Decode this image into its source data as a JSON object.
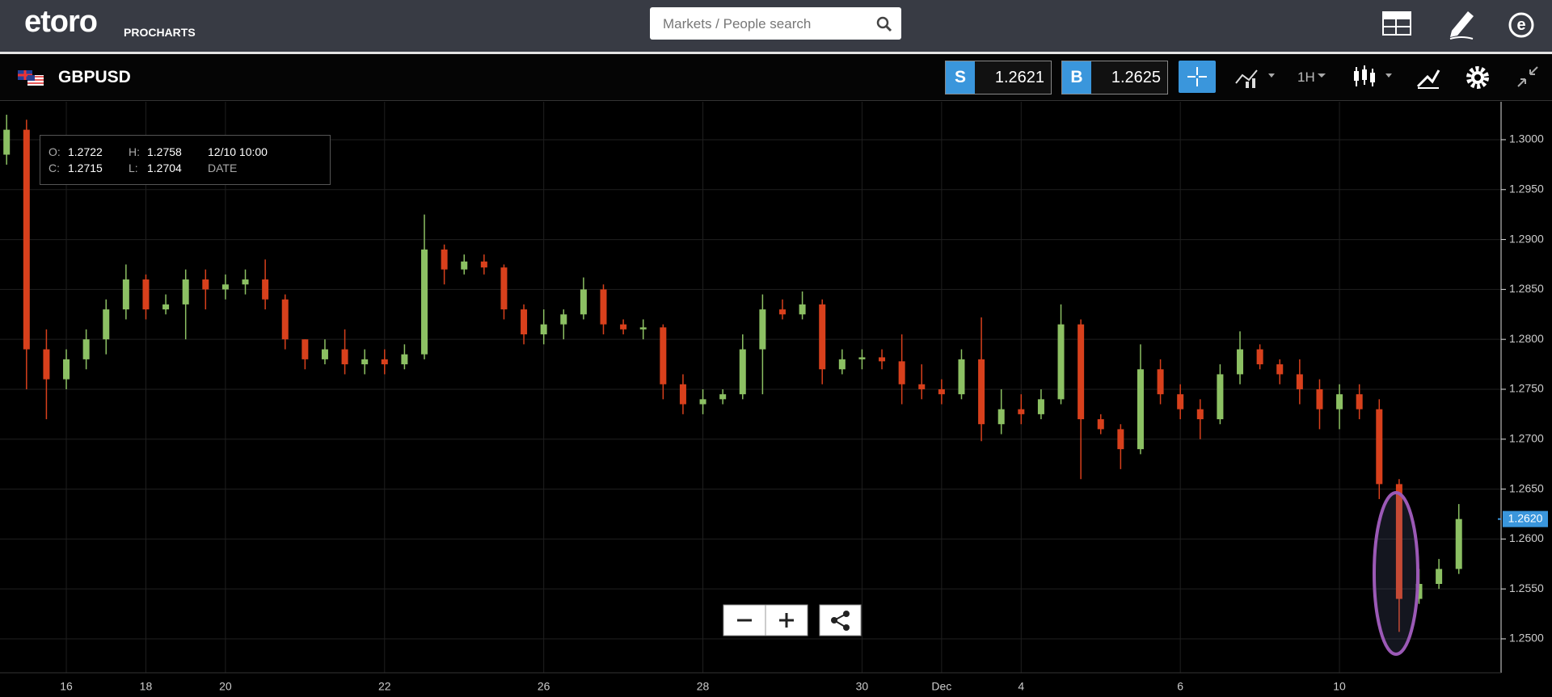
{
  "ui": {
    "logo": "etoro",
    "product": "PROCHARTS",
    "search_placeholder": "Markets / People search",
    "symbol": "GBPUSD",
    "sell_label": "S",
    "sell_price": "1.2621",
    "buy_label": "B",
    "buy_price": "1.2625",
    "timeframe": "1H",
    "ohlc": {
      "o_label": "O:",
      "o": "1.2722",
      "h_label": "H:",
      "h": "1.2758",
      "date": "12/10 10:00",
      "c_label": "C:",
      "c": "1.2715",
      "l_label": "L:",
      "l": "1.2704",
      "date_label": "DATE"
    }
  },
  "chart_data": {
    "type": "candlestick",
    "categories": [
      null,
      null,
      null,
      "16",
      null,
      null,
      null,
      "18",
      null,
      null,
      null,
      "20",
      null,
      null,
      null,
      null,
      null,
      null,
      null,
      "22",
      null,
      null,
      null,
      null,
      null,
      null,
      null,
      "26",
      null,
      null,
      null,
      null,
      null,
      null,
      null,
      "28",
      null,
      null,
      null,
      null,
      null,
      null,
      null,
      "30",
      null,
      null,
      null,
      "Dec",
      null,
      null,
      null,
      "4",
      null,
      null,
      null,
      null,
      null,
      null,
      null,
      "6",
      null,
      null,
      null,
      null,
      null,
      null,
      null,
      "10",
      null,
      null,
      null,
      null,
      null,
      null
    ],
    "open": [
      1.2985,
      1.301,
      1.279,
      1.276,
      1.278,
      1.28,
      1.283,
      1.286,
      1.283,
      1.2835,
      1.286,
      1.285,
      1.2855,
      1.286,
      1.284,
      1.28,
      1.278,
      1.279,
      1.2775,
      1.278,
      1.2775,
      1.2785,
      1.289,
      1.287,
      1.2878,
      1.2872,
      1.283,
      1.2805,
      1.2815,
      1.2825,
      1.285,
      1.2815,
      1.281,
      1.2812,
      1.2755,
      1.2735,
      1.274,
      1.2745,
      1.279,
      1.283,
      1.2825,
      1.2835,
      1.277,
      1.278,
      1.2782,
      1.2778,
      1.2755,
      1.275,
      1.2745,
      1.278,
      1.2715,
      1.273,
      1.2725,
      1.274,
      1.2815,
      1.272,
      1.271,
      1.269,
      1.277,
      1.2745,
      1.273,
      1.272,
      1.2765,
      1.279,
      1.2775,
      1.2765,
      1.275,
      1.273,
      1.2745,
      1.273,
      1.2655,
      1.254,
      1.2555,
      1.257
    ],
    "high": [
      1.3025,
      1.302,
      1.281,
      1.279,
      1.281,
      1.284,
      1.2875,
      1.2865,
      1.2845,
      1.287,
      1.287,
      1.2865,
      1.287,
      1.288,
      1.2845,
      1.28,
      1.28,
      1.281,
      1.279,
      1.279,
      1.2795,
      1.2925,
      1.2895,
      1.2885,
      1.2885,
      1.2875,
      1.2835,
      1.283,
      1.283,
      1.2862,
      1.2855,
      1.282,
      1.282,
      1.2815,
      1.2765,
      1.275,
      1.275,
      1.2805,
      1.2845,
      1.284,
      1.2848,
      1.284,
      1.279,
      1.279,
      1.279,
      1.2805,
      1.2775,
      1.276,
      1.279,
      1.2822,
      1.275,
      1.2745,
      1.275,
      1.2835,
      1.282,
      1.2725,
      1.2715,
      1.2795,
      1.278,
      1.2755,
      1.274,
      1.2775,
      1.2808,
      1.2795,
      1.278,
      1.278,
      1.276,
      1.2755,
      1.2755,
      1.274,
      1.266,
      1.257,
      1.258,
      1.2635
    ],
    "low": [
      1.2975,
      1.275,
      1.272,
      1.275,
      1.277,
      1.2785,
      1.282,
      1.282,
      1.2825,
      1.28,
      1.283,
      1.284,
      1.2845,
      1.283,
      1.279,
      1.277,
      1.2775,
      1.2765,
      1.2765,
      1.2765,
      1.277,
      1.278,
      1.2855,
      1.2865,
      1.2865,
      1.282,
      1.2795,
      1.2795,
      1.28,
      1.282,
      1.2805,
      1.2805,
      1.28,
      1.274,
      1.2725,
      1.2725,
      1.2735,
      1.274,
      1.2745,
      1.282,
      1.282,
      1.2755,
      1.2765,
      1.277,
      1.277,
      1.2735,
      1.274,
      1.2735,
      1.274,
      1.2698,
      1.2705,
      1.2715,
      1.272,
      1.2735,
      1.266,
      1.2705,
      1.267,
      1.2685,
      1.2735,
      1.272,
      1.27,
      1.2715,
      1.2755,
      1.277,
      1.2755,
      1.2735,
      1.271,
      1.271,
      1.272,
      1.264,
      1.2507,
      1.2535,
      1.255,
      1.2565
    ],
    "close": [
      1.301,
      1.279,
      1.276,
      1.278,
      1.28,
      1.283,
      1.286,
      1.283,
      1.2835,
      1.286,
      1.285,
      1.2855,
      1.286,
      1.284,
      1.28,
      1.278,
      1.279,
      1.2775,
      1.278,
      1.2775,
      1.2785,
      1.289,
      1.287,
      1.2878,
      1.2872,
      1.283,
      1.2805,
      1.2815,
      1.2825,
      1.285,
      1.2815,
      1.281,
      1.2812,
      1.2755,
      1.2735,
      1.274,
      1.2745,
      1.279,
      1.283,
      1.2825,
      1.2835,
      1.277,
      1.278,
      1.2782,
      1.2778,
      1.2755,
      1.275,
      1.2745,
      1.278,
      1.2715,
      1.273,
      1.2725,
      1.274,
      1.2815,
      1.272,
      1.271,
      1.269,
      1.277,
      1.2745,
      1.273,
      1.272,
      1.2765,
      1.279,
      1.2775,
      1.2765,
      1.275,
      1.273,
      1.2745,
      1.273,
      1.2655,
      1.254,
      1.2555,
      1.257,
      1.262
    ],
    "up_color": "#8cc063",
    "down_color": "#d8401c",
    "ylim": [
      1.2466,
      1.3038
    ],
    "yticks": [
      {
        "value": 1.25,
        "label": "1.2500"
      },
      {
        "value": 1.255,
        "label": "1.2550"
      },
      {
        "value": 1.26,
        "label": "1.2600"
      },
      {
        "value": 1.265,
        "label": "1.2650"
      },
      {
        "value": 1.27,
        "label": "1.2700"
      },
      {
        "value": 1.275,
        "label": "1.2750"
      },
      {
        "value": 1.28,
        "label": "1.2800"
      },
      {
        "value": 1.285,
        "label": "1.2850"
      },
      {
        "value": 1.29,
        "label": "1.2900"
      },
      {
        "value": 1.295,
        "label": "1.2950"
      },
      {
        "value": 1.3,
        "label": "1.3000"
      }
    ],
    "grid": true,
    "last_price": {
      "value": 1.262,
      "label": "1.2620"
    }
  }
}
